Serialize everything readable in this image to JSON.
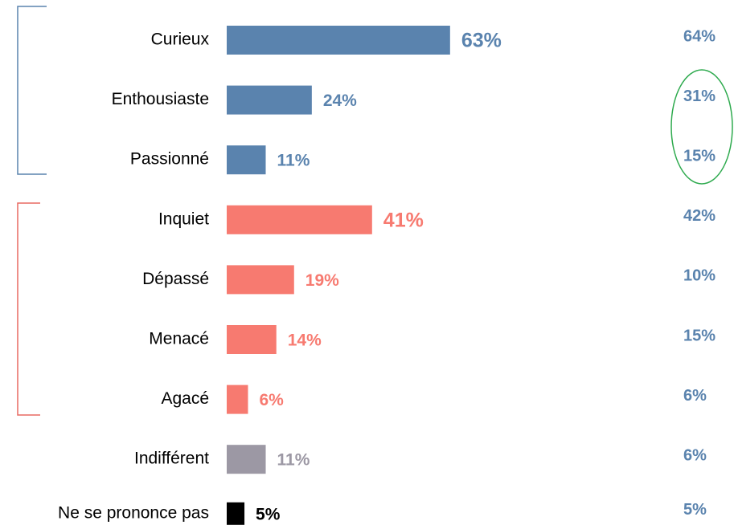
{
  "chart_data": {
    "type": "bar",
    "categories": [
      "Curieux",
      "Enthousiaste",
      "Passionné",
      "Inquiet",
      "Dépassé",
      "Menacé",
      "Agacé",
      "Indifférent",
      "Ne se prononce pas"
    ],
    "values": [
      63,
      24,
      11,
      41,
      19,
      14,
      6,
      11,
      5
    ],
    "value_labels": [
      "63%",
      "24%",
      "11%",
      "41%",
      "19%",
      "14%",
      "6%",
      "11%",
      "5%"
    ],
    "colors": [
      "#5a83ae",
      "#5a83ae",
      "#5a83ae",
      "#f77a70",
      "#f77a70",
      "#f77a70",
      "#f77a70",
      "#9c98a4",
      "#000000"
    ],
    "comparison": {
      "values": [
        64,
        31,
        15,
        42,
        10,
        15,
        6,
        6,
        5
      ],
      "value_labels": [
        "64%",
        "31%",
        "15%",
        "42%",
        "10%",
        "15%",
        "6%",
        "6%",
        "5%"
      ],
      "color": "#5a83ae"
    }
  }
}
